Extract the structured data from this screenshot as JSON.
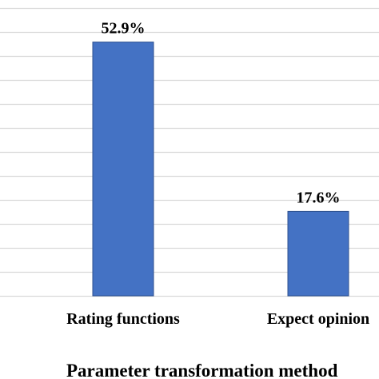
{
  "chart_data": {
    "type": "bar",
    "categories": [
      "Rating functions",
      "Expect opinion"
    ],
    "values": [
      52.9,
      17.6
    ],
    "data_labels": [
      "52.9%",
      "17.6%"
    ],
    "title": "",
    "xlabel": "Parameter transformation method",
    "ylabel": "",
    "ylim": [
      0,
      60
    ],
    "grid": true,
    "legend": "none",
    "bar_color": "#4472C4",
    "grid_color": "#D9D9D9"
  }
}
